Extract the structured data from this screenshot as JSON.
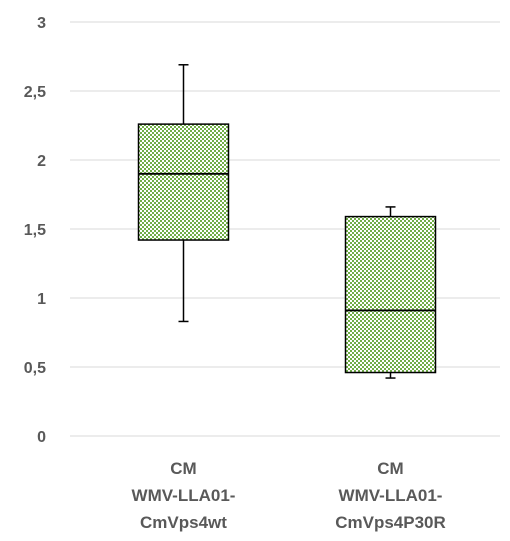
{
  "chart_data": {
    "type": "boxplot",
    "title": "",
    "xlabel": "",
    "ylabel": "",
    "ylim": [
      0,
      3
    ],
    "yticks": [
      0,
      0.5,
      1,
      1.5,
      2,
      2.5,
      3
    ],
    "ytick_labels": [
      "0",
      "0,5",
      "1",
      "1,5",
      "2",
      "2,5",
      "3"
    ],
    "grid": true,
    "categories": [
      [
        "CM",
        "WMV-LLA01-",
        "CmVps4wt"
      ],
      [
        "CM",
        "WMV-LLA01-",
        "CmVps4P30R"
      ]
    ],
    "boxes": [
      {
        "min": 0.83,
        "q1": 1.42,
        "median": 1.9,
        "q3": 2.26,
        "max": 2.69
      },
      {
        "min": 0.42,
        "q1": 0.46,
        "median": 0.91,
        "q3": 1.59,
        "max": 1.66
      }
    ],
    "colors": {
      "box_fill": "#70ad47",
      "box_background": "#ffffff",
      "box_stroke": "#000000",
      "grid": "#d9d9d9",
      "text": "#595959"
    }
  }
}
